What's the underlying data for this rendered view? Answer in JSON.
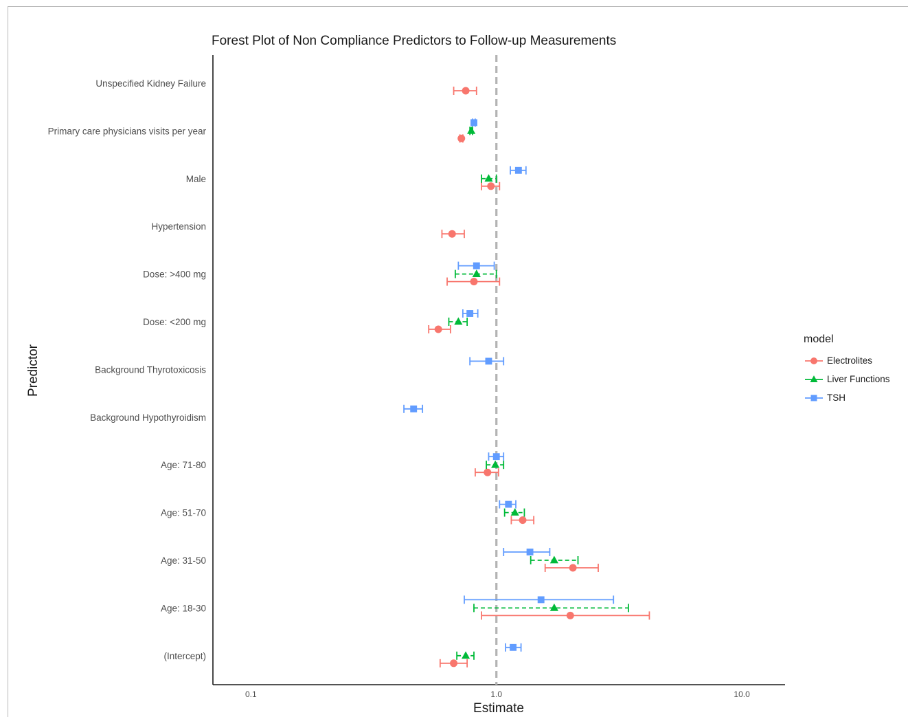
{
  "chart_data": {
    "type": "forest",
    "title": "Forest Plot of Non Compliance Predictors to Follow-up Measurements",
    "xlabel": "Estimate",
    "ylabel": "Predictor",
    "x_scale": "log10",
    "xlim": [
      0.07,
      15
    ],
    "x_ticks": [
      "0.1",
      "1.0",
      "10.0"
    ],
    "x_tick_values": [
      0.1,
      1.0,
      10.0
    ],
    "reference_line": 1.0,
    "predictors": [
      "Unspecified Kidney Failure",
      "Primary care physicians visits per year",
      "Male",
      "Hypertension",
      "Dose: >400 mg",
      "Dose: <200 mg",
      "Background Thyrotoxicosis",
      "Background Hypothyroidism",
      "Age: 71-80",
      "Age: 51-70",
      "Age: 31-50",
      "Age: 18-30",
      "(Intercept)"
    ],
    "legend": {
      "title": "model",
      "position": "right"
    },
    "series": [
      {
        "name": "Electrolites",
        "color": "#F8766D",
        "marker": "circle",
        "line": "solid",
        "points": [
          {
            "predictor": "Unspecified Kidney Failure",
            "estimate": 0.75,
            "low": 0.67,
            "high": 0.83
          },
          {
            "predictor": "Primary care physicians visits per year",
            "estimate": 0.72,
            "low": 0.71,
            "high": 0.73
          },
          {
            "predictor": "Male",
            "estimate": 0.95,
            "low": 0.87,
            "high": 1.03
          },
          {
            "predictor": "Hypertension",
            "estimate": 0.66,
            "low": 0.6,
            "high": 0.74
          },
          {
            "predictor": "Dose: >400 mg",
            "estimate": 0.81,
            "low": 0.63,
            "high": 1.03
          },
          {
            "predictor": "Dose: <200 mg",
            "estimate": 0.58,
            "low": 0.53,
            "high": 0.65
          },
          {
            "predictor": "Age: 71-80",
            "estimate": 0.92,
            "low": 0.82,
            "high": 1.02
          },
          {
            "predictor": "Age: 51-70",
            "estimate": 1.28,
            "low": 1.15,
            "high": 1.42
          },
          {
            "predictor": "Age: 31-50",
            "estimate": 2.05,
            "low": 1.58,
            "high": 2.6
          },
          {
            "predictor": "Age: 18-30",
            "estimate": 2.0,
            "low": 0.87,
            "high": 4.2
          },
          {
            "predictor": "(Intercept)",
            "estimate": 0.67,
            "low": 0.59,
            "high": 0.76
          }
        ]
      },
      {
        "name": "Liver Functions",
        "color": "#00BA38",
        "marker": "triangle",
        "line": "dashed",
        "points": [
          {
            "predictor": "Primary care physicians visits per year",
            "estimate": 0.79,
            "low": 0.78,
            "high": 0.8
          },
          {
            "predictor": "Male",
            "estimate": 0.93,
            "low": 0.87,
            "high": 1.0
          },
          {
            "predictor": "Dose: >400 mg",
            "estimate": 0.83,
            "low": 0.68,
            "high": 1.0
          },
          {
            "predictor": "Dose: <200 mg",
            "estimate": 0.7,
            "low": 0.64,
            "high": 0.76
          },
          {
            "predictor": "Age: 71-80",
            "estimate": 0.99,
            "low": 0.91,
            "high": 1.07
          },
          {
            "predictor": "Age: 51-70",
            "estimate": 1.19,
            "low": 1.08,
            "high": 1.3
          },
          {
            "predictor": "Age: 31-50",
            "estimate": 1.72,
            "low": 1.38,
            "high": 2.15
          },
          {
            "predictor": "Age: 18-30",
            "estimate": 1.72,
            "low": 0.81,
            "high": 3.45
          },
          {
            "predictor": "(Intercept)",
            "estimate": 0.75,
            "low": 0.69,
            "high": 0.81
          }
        ]
      },
      {
        "name": "TSH",
        "color": "#619CFF",
        "marker": "square",
        "line": "solid",
        "points": [
          {
            "predictor": "Primary care physicians visits per year",
            "estimate": 0.81,
            "low": 0.8,
            "high": 0.82
          },
          {
            "predictor": "Male",
            "estimate": 1.23,
            "low": 1.14,
            "high": 1.32
          },
          {
            "predictor": "Dose: >400 mg",
            "estimate": 0.83,
            "low": 0.7,
            "high": 0.98
          },
          {
            "predictor": "Dose: <200 mg",
            "estimate": 0.78,
            "low": 0.73,
            "high": 0.84
          },
          {
            "predictor": "Background Thyrotoxicosis",
            "estimate": 0.93,
            "low": 0.78,
            "high": 1.07
          },
          {
            "predictor": "Background Hypothyroidism",
            "estimate": 0.46,
            "low": 0.42,
            "high": 0.5
          },
          {
            "predictor": "Age: 71-80",
            "estimate": 1.0,
            "low": 0.93,
            "high": 1.07
          },
          {
            "predictor": "Age: 51-70",
            "estimate": 1.12,
            "low": 1.03,
            "high": 1.2
          },
          {
            "predictor": "Age: 31-50",
            "estimate": 1.37,
            "low": 1.07,
            "high": 1.65
          },
          {
            "predictor": "Age: 18-30",
            "estimate": 1.52,
            "low": 0.74,
            "high": 3.0
          },
          {
            "predictor": "(Intercept)",
            "estimate": 1.17,
            "low": 1.09,
            "high": 1.26
          }
        ]
      }
    ]
  }
}
